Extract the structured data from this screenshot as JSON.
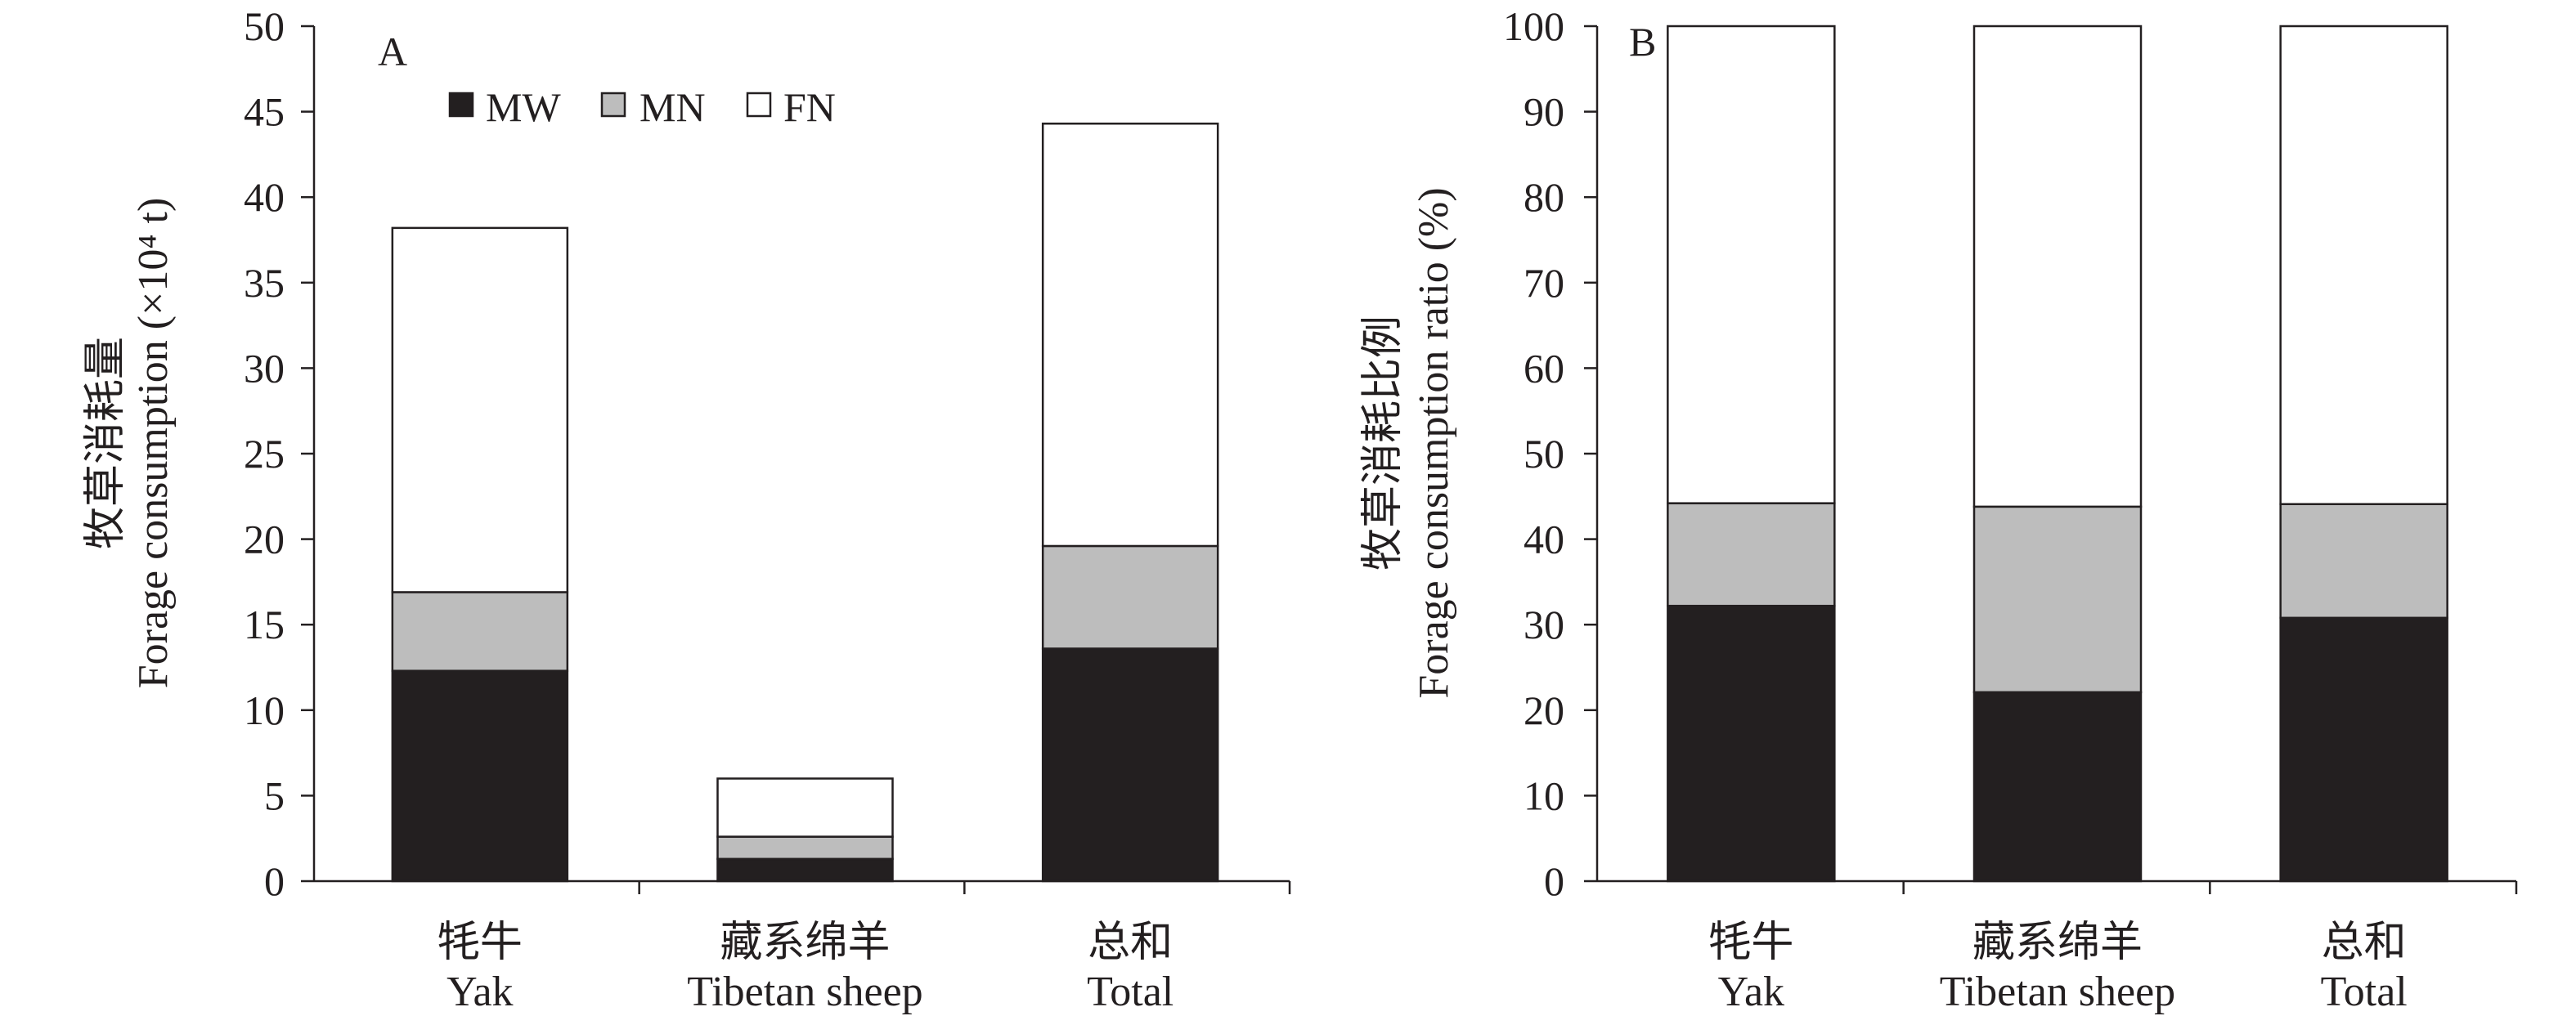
{
  "figure": {
    "background": "#ffffff",
    "axis_color": "#231f20",
    "bar_outline_color": "#231f20"
  },
  "chart_data": [
    {
      "panel_label": "A",
      "type": "bar",
      "stacked": true,
      "categories": [
        {
          "zh": "牦牛",
          "en": "Yak"
        },
        {
          "zh": "藏系绵羊",
          "en": "Tibetan sheep"
        },
        {
          "zh": "总和",
          "en": "Total"
        }
      ],
      "xlabel": "",
      "ylabel": {
        "zh": "牧草消耗量",
        "en": "Forage consumption (×10⁴ t)"
      },
      "ylim": [
        0,
        50
      ],
      "yticks": [
        0,
        5,
        10,
        15,
        20,
        25,
        30,
        35,
        40,
        45,
        50
      ],
      "grid": false,
      "legend": {
        "position": "top-left",
        "orientation": "horizontal"
      },
      "series": [
        {
          "name": "MW",
          "color": "#231f20",
          "values": [
            12.3,
            1.3,
            13.6
          ]
        },
        {
          "name": "MN",
          "color": "#bdbdbd",
          "values": [
            4.6,
            1.3,
            6.0
          ]
        },
        {
          "name": "FN",
          "color": "#ffffff",
          "values": [
            21.3,
            3.4,
            24.7
          ]
        }
      ]
    },
    {
      "panel_label": "B",
      "type": "bar",
      "stacked": true,
      "categories": [
        {
          "zh": "牦牛",
          "en": "Yak"
        },
        {
          "zh": "藏系绵羊",
          "en": "Tibetan sheep"
        },
        {
          "zh": "总和",
          "en": "Total"
        }
      ],
      "xlabel": "",
      "ylabel": {
        "zh": "牧草消耗比例",
        "en": "Forage consumption ratio (%)"
      },
      "ylim": [
        0,
        100
      ],
      "yticks": [
        0,
        10,
        20,
        30,
        40,
        50,
        60,
        70,
        80,
        90,
        100
      ],
      "grid": false,
      "series": [
        {
          "color": "#231f20",
          "values": [
            32.2,
            22.1,
            30.8
          ]
        },
        {
          "color": "#bdbdbd",
          "values": [
            12.0,
            21.7,
            13.3
          ]
        },
        {
          "color": "#ffffff",
          "values": [
            55.8,
            56.2,
            55.9
          ]
        }
      ]
    }
  ]
}
